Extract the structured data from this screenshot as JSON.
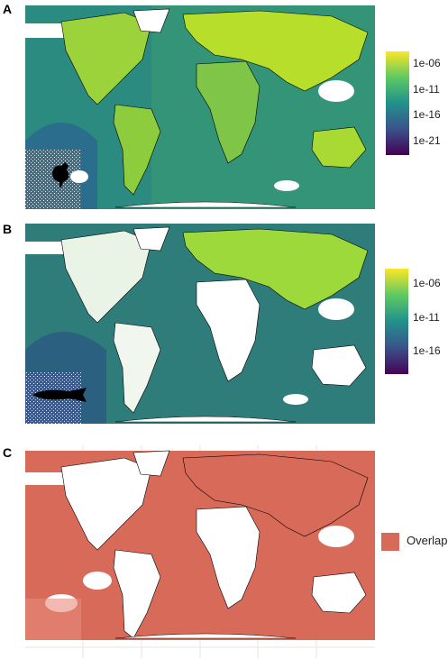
{
  "panels": [
    {
      "letter": "A",
      "silhouette": "chicken-icon",
      "legend": {
        "ticks": [
          "1e-06",
          "1e-11",
          "1e-16",
          "1e-21"
        ]
      }
    },
    {
      "letter": "B",
      "silhouette": "salmon-icon",
      "legend": {
        "ticks": [
          "1e-06",
          "1e-11",
          "1e-16"
        ]
      }
    },
    {
      "letter": "C",
      "legend": {
        "label": "Overlap"
      }
    }
  ],
  "colors": {
    "viridis_high": "#FDE725",
    "viridis_mid": "#5EC962",
    "viridis_low": "#21918C",
    "viridis_lower": "#3B528B",
    "viridis_min": "#440154",
    "overlap": "#D86A59",
    "land_outline": "#000000"
  }
}
